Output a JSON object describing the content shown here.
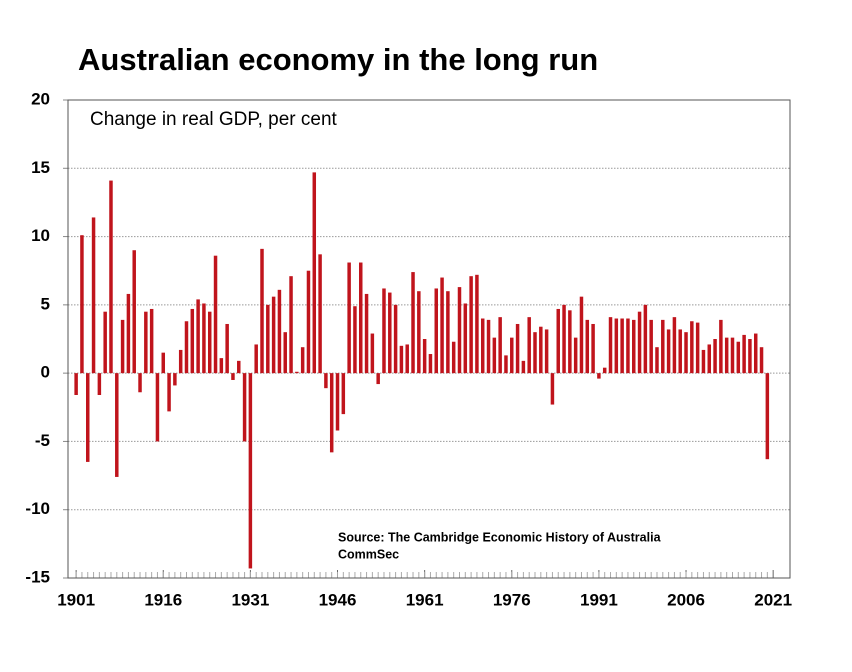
{
  "chart_data": {
    "type": "bar",
    "title": "Australian economy in the long run",
    "y_label": "Change in real GDP, per cent",
    "annotations": [
      "Source: The Cambridge Economic History of Australia",
      "CommSec"
    ],
    "color": "#c0141c",
    "grid": true,
    "x": [
      1901,
      1902,
      1903,
      1904,
      1905,
      1906,
      1907,
      1908,
      1909,
      1910,
      1911,
      1912,
      1913,
      1914,
      1915,
      1916,
      1917,
      1918,
      1919,
      1920,
      1921,
      1922,
      1923,
      1924,
      1925,
      1926,
      1927,
      1928,
      1929,
      1930,
      1931,
      1932,
      1933,
      1934,
      1935,
      1936,
      1937,
      1938,
      1939,
      1940,
      1941,
      1942,
      1943,
      1944,
      1945,
      1946,
      1947,
      1948,
      1949,
      1950,
      1951,
      1952,
      1953,
      1954,
      1955,
      1956,
      1957,
      1958,
      1959,
      1960,
      1961,
      1962,
      1963,
      1964,
      1965,
      1966,
      1967,
      1968,
      1969,
      1970,
      1971,
      1972,
      1973,
      1974,
      1975,
      1976,
      1977,
      1978,
      1979,
      1980,
      1981,
      1982,
      1983,
      1984,
      1985,
      1986,
      1987,
      1988,
      1989,
      1990,
      1991,
      1992,
      1993,
      1994,
      1995,
      1996,
      1997,
      1998,
      1999,
      2000,
      2001,
      2002,
      2003,
      2004,
      2005,
      2006,
      2007,
      2008,
      2009,
      2010,
      2011,
      2012,
      2013,
      2014,
      2015,
      2016,
      2017,
      2018,
      2019,
      2020
    ],
    "values": [
      -1.6,
      10.1,
      -6.5,
      11.4,
      -1.6,
      4.5,
      14.1,
      -7.6,
      3.9,
      5.8,
      9.0,
      -1.4,
      4.5,
      4.7,
      -5.0,
      1.5,
      -2.8,
      -0.9,
      1.7,
      3.8,
      4.7,
      5.4,
      5.1,
      4.5,
      8.6,
      1.1,
      3.6,
      -0.5,
      0.9,
      -5.0,
      -14.3,
      2.1,
      9.1,
      5.0,
      5.6,
      6.1,
      3.0,
      7.1,
      0.1,
      1.9,
      7.5,
      14.7,
      8.7,
      -1.1,
      -5.8,
      -4.2,
      -3.0,
      8.1,
      4.9,
      8.1,
      5.8,
      2.9,
      -0.8,
      6.2,
      5.9,
      5.0,
      2.0,
      2.1,
      7.4,
      6.0,
      2.5,
      1.4,
      6.2,
      7.0,
      6.0,
      2.3,
      6.3,
      5.1,
      7.1,
      7.2,
      4.0,
      3.9,
      2.6,
      4.1,
      1.3,
      2.6,
      3.6,
      0.9,
      4.1,
      3.0,
      3.4,
      3.2,
      -2.3,
      4.7,
      5.0,
      4.6,
      2.6,
      5.6,
      3.9,
      3.6,
      -0.4,
      0.4,
      4.1,
      4.0,
      4.0,
      4.0,
      3.9,
      4.5,
      5.0,
      3.9,
      1.9,
      3.9,
      3.2,
      4.1,
      3.2,
      3.0,
      3.8,
      3.7,
      1.7,
      2.1,
      2.5,
      3.9,
      2.6,
      2.6,
      2.3,
      2.8,
      2.5,
      2.9,
      1.9,
      -6.3
    ],
    "xlim": [
      1899.6,
      2023.9
    ],
    "xticks": [
      1901,
      1916,
      1931,
      1946,
      1961,
      1976,
      1991,
      2006,
      2021
    ],
    "ylim": [
      -15,
      20
    ],
    "yticks": [
      -15,
      -10,
      -5,
      0,
      5,
      10,
      15,
      20
    ]
  }
}
